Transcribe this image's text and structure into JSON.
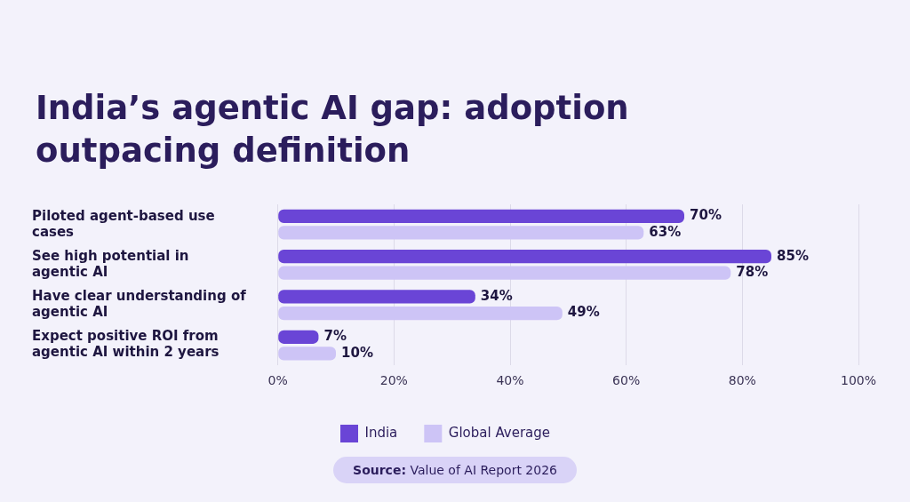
{
  "chart_data": {
    "type": "bar",
    "orientation": "horizontal",
    "title": "India’s agentic AI gap: adoption outpacing definition",
    "categories": [
      "Piloted agent-based use cases",
      "See high potential in agentic AI",
      "Have clear understanding of agentic AI",
      "Expect positive ROI from agentic AI within 2 years"
    ],
    "series": [
      {
        "name": "India",
        "color": "#6a45d6",
        "values": [
          70,
          85,
          34,
          7
        ],
        "value_labels": [
          "70%",
          "85%",
          "34%",
          "7%"
        ]
      },
      {
        "name": "Global Average",
        "color": "#cdc4f6",
        "values": [
          63,
          78,
          49,
          10
        ],
        "value_labels": [
          "63%",
          "78%",
          "49%",
          "10%"
        ]
      }
    ],
    "xlim": [
      0,
      100
    ],
    "xticks": [
      {
        "value": 0,
        "label": "0%"
      },
      {
        "value": 20,
        "label": "20%"
      },
      {
        "value": 40,
        "label": "40%"
      },
      {
        "value": 60,
        "label": "60%"
      },
      {
        "value": 80,
        "label": "80%"
      },
      {
        "value": 100,
        "label": "100%"
      }
    ],
    "grid": "x",
    "legend": "bottom",
    "annotations": [
      "Source: Value of AI Report 2026"
    ]
  }
}
